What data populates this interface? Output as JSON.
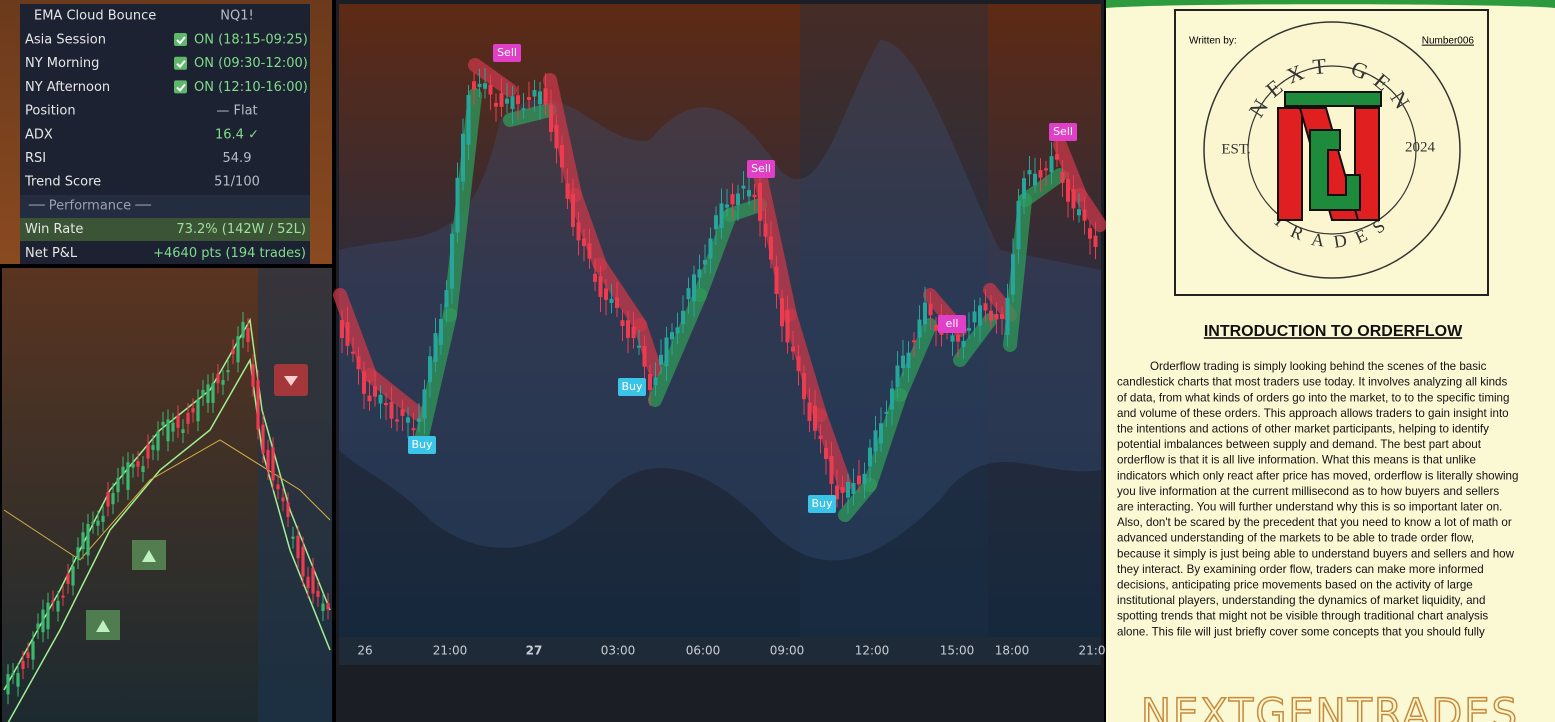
{
  "panel": {
    "title": "EMA Cloud Bounce",
    "symbol": "NQ1!",
    "rows": [
      [
        "Asia Session",
        "ON (18:15-09:25)"
      ],
      [
        "NY Morning",
        "ON (09:30-12:00)"
      ],
      [
        "NY Afternoon",
        "ON (12:10-16:00)"
      ],
      [
        "Position",
        "— Flat"
      ],
      [
        "ADX",
        "16.4 ✓"
      ],
      [
        "RSI",
        "54.9"
      ],
      [
        "Trend Score",
        "51/100"
      ]
    ],
    "performance_header": "── Performance ──",
    "performance_rows": [
      [
        "Win Rate",
        "73.2%  (142W / 52L)"
      ],
      [
        "Net P&L",
        "+4640 pts (194 trades)"
      ]
    ]
  },
  "main_chart": {
    "x_labels": [
      "26",
      "21:00",
      "27",
      "03:00",
      "06:00",
      "09:00",
      "12:00",
      "15:00",
      "18:00",
      "21:0"
    ],
    "signals": [
      "Sell",
      "Buy",
      "Buy",
      "Sell",
      "Buy",
      "ell",
      "Sell"
    ]
  },
  "document": {
    "written_by": "Written by:",
    "author": "Number006",
    "logo_top": "NEXT GEN",
    "logo_bottom": "TRADES",
    "logo_left": "EST.",
    "logo_right": "2024",
    "heading": "INTRODUCTION TO ORDERFLOW",
    "lines": [
      "Orderflow trading is simply looking behind the scenes of the basic",
      "candlestick charts that most traders use today. It involves analyzing all kinds",
      "of data, from what kinds of orders go into the market, to to the specific timing",
      "and volume of these orders. This approach allows traders to gain insight into",
      "the intentions and actions of other market participants, helping to identify",
      "potential imbalances between supply and demand. The best part about",
      "orderflow is that it is all live information. What this means is that unlike",
      "indicators which only react after price has moved, orderflow is literally showing",
      "you live information at the current millisecond as to how buyers and sellers",
      "are interacting. You will further understand why this is so important later on.",
      "Also, don't be scared by the precedent that you need to know a lot of math or",
      "advanced understanding of the markets to be able to trade order flow,",
      "because it simply is just being able to understand buyers and sellers and how",
      "they interact. By examining order flow, traders can make more informed",
      "decisions, anticipating price movements based on the activity of large",
      "institutional players, understanding the dynamics of market liquidity, and",
      "spotting trends that might not be visible through traditional chart analysis",
      "alone. This file will just briefly cover some concepts that you should fully"
    ],
    "footer": "NEXTGENTRADES"
  }
}
